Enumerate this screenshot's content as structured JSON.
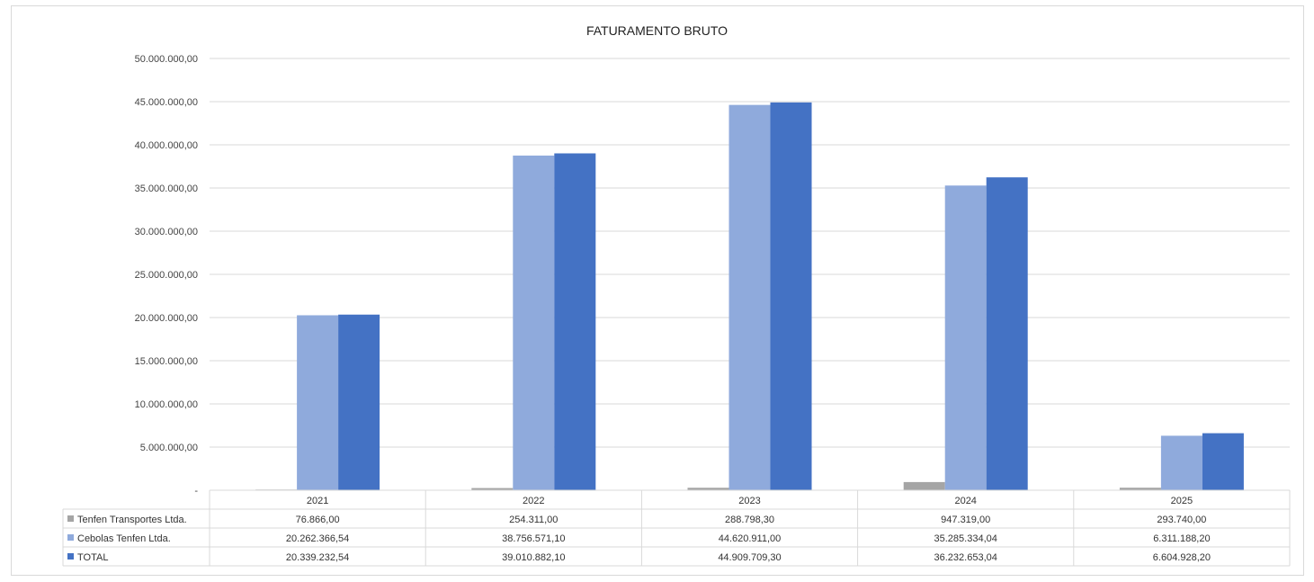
{
  "chart_data": {
    "type": "bar",
    "title": "FATURAMENTO BRUTO",
    "categories": [
      "2021",
      "2022",
      "2023",
      "2024",
      "2025"
    ],
    "ylim": [
      0,
      50000000
    ],
    "ytick_values": [
      0,
      5000000,
      10000000,
      15000000,
      20000000,
      25000000,
      30000000,
      35000000,
      40000000,
      45000000,
      50000000
    ],
    "ytick_labels": [
      "-",
      "5.000.000,00",
      "10.000.000,00",
      "15.000.000,00",
      "20.000.000,00",
      "25.000.000,00",
      "30.000.000,00",
      "35.000.000,00",
      "40.000.000,00",
      "45.000.000,00",
      "50.000.000,00"
    ],
    "grid": true,
    "legend": "data-table",
    "series": [
      {
        "name": "Tenfen Transportes Ltda.",
        "color": "#a5a5a5",
        "values": [
          76866.0,
          254311.0,
          288798.3,
          947319.0,
          293740.0
        ],
        "labels": [
          "76.866,00",
          "254.311,00",
          "288.798,30",
          "947.319,00",
          "293.740,00"
        ]
      },
      {
        "name": "Cebolas Tenfen Ltda.",
        "color": "#8faadc",
        "values": [
          20262366.54,
          38756571.1,
          44620911.0,
          35285334.04,
          6311188.2
        ],
        "labels": [
          "20.262.366,54",
          "38.756.571,10",
          "44.620.911,00",
          "35.285.334,04",
          "6.311.188,20"
        ]
      },
      {
        "name": "TOTAL",
        "color": "#4472c4",
        "values": [
          20339232.54,
          39010882.1,
          44909709.3,
          36232653.04,
          6604928.2
        ],
        "labels": [
          "20.339.232,54",
          "39.010.882,10",
          "44.909.709,30",
          "36.232.653,04",
          "6.604.928,20"
        ]
      }
    ]
  }
}
